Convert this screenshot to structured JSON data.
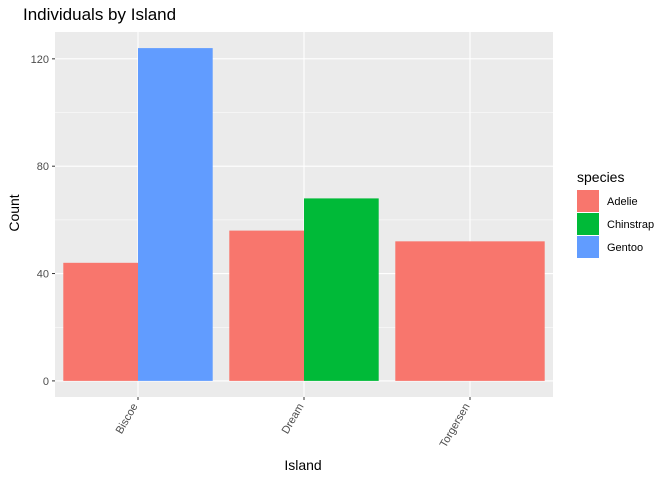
{
  "chart_data": {
    "type": "bar",
    "title": "Individuals by Island",
    "xlabel": "Island",
    "ylabel": "Count",
    "categories": [
      "Biscoe",
      "Dream",
      "Torgersen"
    ],
    "ylim": [
      -6,
      130
    ],
    "y_ticks": [
      0,
      40,
      80,
      120
    ],
    "grid": true,
    "bar_layout": "dodge",
    "legend": {
      "title": "species",
      "position": "right",
      "entries": [
        {
          "name": "Adelie",
          "color": "#F8766D"
        },
        {
          "name": "Chinstrap",
          "color": "#00BA38"
        },
        {
          "name": "Gentoo",
          "color": "#619CFF"
        }
      ]
    },
    "bars": [
      {
        "category": "Biscoe",
        "species": "Adelie",
        "value": 44
      },
      {
        "category": "Biscoe",
        "species": "Gentoo",
        "value": 124
      },
      {
        "category": "Dream",
        "species": "Adelie",
        "value": 56
      },
      {
        "category": "Dream",
        "species": "Chinstrap",
        "value": 68
      },
      {
        "category": "Torgersen",
        "species": "Adelie",
        "value": 52
      }
    ],
    "colors": {
      "panel_bg": "#EBEBEB",
      "grid": "#FFFFFF"
    }
  }
}
